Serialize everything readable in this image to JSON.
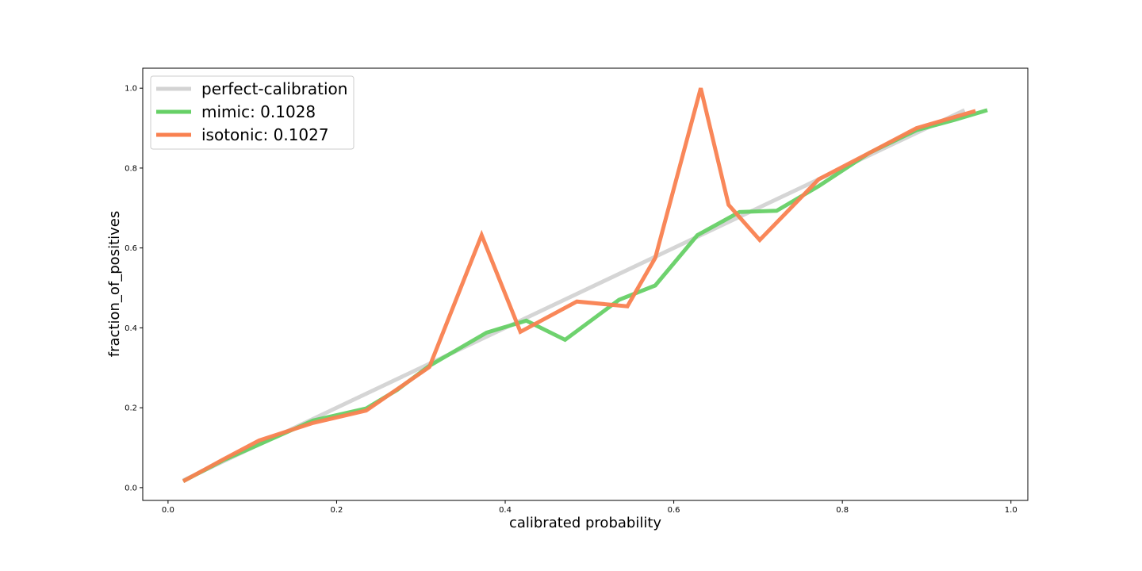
{
  "chart_data": {
    "type": "line",
    "title": "",
    "xlabel": "calibrated probability",
    "ylabel": "fraction_of_positives",
    "xlim": [
      -0.03,
      1.02
    ],
    "ylim": [
      -0.032,
      1.05
    ],
    "xticks": [
      0.0,
      0.2,
      0.4,
      0.6,
      0.8,
      1.0
    ],
    "xtick_labels": [
      "0.0",
      "0.2",
      "0.4",
      "0.6",
      "0.8",
      "1.0"
    ],
    "yticks": [
      0.0,
      0.2,
      0.4,
      0.6,
      0.8,
      1.0
    ],
    "ytick_labels": [
      "0.0",
      "0.2",
      "0.4",
      "0.6",
      "0.8",
      "1.0"
    ],
    "grid": false,
    "legend_position": "top-left",
    "series": [
      {
        "name": "perfect-calibration",
        "color": "#d3d3d3",
        "legend_label": "perfect-calibration",
        "x": [
          0.018,
          0.945
        ],
        "y": [
          0.018,
          0.945
        ]
      },
      {
        "name": "mimic",
        "color": "#66d066",
        "legend_label": "mimic: 0.1028",
        "x": [
          0.018,
          0.065,
          0.108,
          0.172,
          0.235,
          0.272,
          0.31,
          0.378,
          0.425,
          0.471,
          0.535,
          0.578,
          0.628,
          0.678,
          0.722,
          0.772,
          0.832,
          0.888,
          0.932,
          0.972
        ],
        "y": [
          0.016,
          0.068,
          0.108,
          0.168,
          0.198,
          0.245,
          0.305,
          0.388,
          0.418,
          0.37,
          0.47,
          0.506,
          0.632,
          0.69,
          0.693,
          0.755,
          0.838,
          0.895,
          0.92,
          0.945
        ]
      },
      {
        "name": "isotonic",
        "color": "#f98150",
        "legend_label": "isotonic: 0.1027",
        "x": [
          0.018,
          0.065,
          0.108,
          0.172,
          0.235,
          0.31,
          0.372,
          0.418,
          0.485,
          0.545,
          0.578,
          0.632,
          0.665,
          0.702,
          0.772,
          0.832,
          0.888,
          0.958
        ],
        "y": [
          0.016,
          0.07,
          0.118,
          0.162,
          0.193,
          0.302,
          0.632,
          0.39,
          0.466,
          0.454,
          0.575,
          1.0,
          0.708,
          0.62,
          0.772,
          0.838,
          0.9,
          0.943
        ]
      }
    ]
  }
}
